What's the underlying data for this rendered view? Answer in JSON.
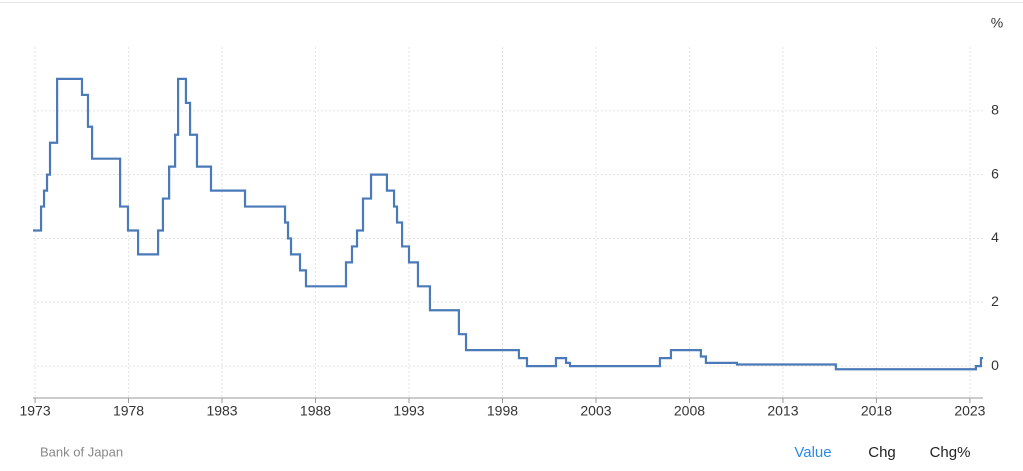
{
  "chart_data": {
    "type": "line",
    "step": true,
    "color": "#4a7ab8",
    "y_unit": "%",
    "x": [
      1972.89,
      1973.32,
      1973.48,
      1973.64,
      1973.8,
      1974.18,
      1975.51,
      1975.83,
      1976.05,
      1977.55,
      1977.97,
      1978.51,
      1979.58,
      1979.84,
      1980.17,
      1980.49,
      1980.65,
      1981.07,
      1981.29,
      1981.66,
      1982.41,
      1984.23,
      1986.37,
      1986.53,
      1986.69,
      1987.17,
      1987.49,
      1989.63,
      1989.95,
      1990.22,
      1990.54,
      1990.97,
      1991.82,
      1992.2,
      1992.36,
      1992.63,
      1993.0,
      1993.48,
      1994.12,
      1995.67,
      1996.05,
      1998.88,
      1999.31,
      2000.86,
      2001.4,
      2001.61,
      2006.42,
      2007.01,
      2008.61,
      2008.88,
      2010.54,
      2015.83,
      2023.32,
      2023.59,
      2023.7
    ],
    "values": [
      4.25,
      5.0,
      5.5,
      6.0,
      7.0,
      9.0,
      8.5,
      7.5,
      6.5,
      5.0,
      4.25,
      3.5,
      4.25,
      5.25,
      6.25,
      7.25,
      9.0,
      8.25,
      7.25,
      6.25,
      5.5,
      5.0,
      4.5,
      4.0,
      3.5,
      3.0,
      2.5,
      3.25,
      3.75,
      4.25,
      5.25,
      6.0,
      5.5,
      5.0,
      4.5,
      3.75,
      3.25,
      2.5,
      1.75,
      1.0,
      0.5,
      0.25,
      0.0,
      0.25,
      0.1,
      0.0,
      0.25,
      0.5,
      0.3,
      0.1,
      0.05,
      -0.1,
      0.0,
      0.25,
      0.25
    ],
    "xlim": [
      1972.89,
      2023.7
    ],
    "xticks": [
      1973,
      1978,
      1983,
      1988,
      1993,
      1998,
      2003,
      2008,
      2013,
      2018,
      2023
    ],
    "ylim": [
      -1,
      10
    ],
    "yticks": [
      0,
      2,
      4,
      6,
      8
    ],
    "grid": true
  },
  "footer": {
    "source": "Bank of Japan",
    "tabs": [
      "Value",
      "Chg",
      "Chg%"
    ],
    "active_tab": 0
  }
}
